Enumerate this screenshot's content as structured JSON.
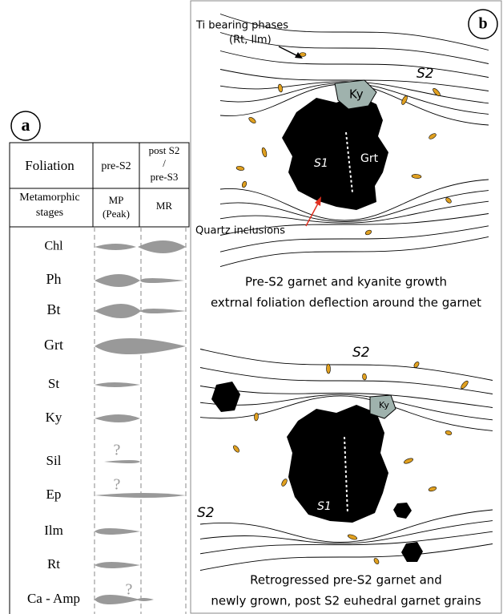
{
  "panel_a": {
    "label": "a",
    "header": {
      "foliation": "Foliation",
      "pre": "pre-S2",
      "post": [
        "post S2",
        "/",
        "pre-S3"
      ],
      "stages": [
        "Metamorphic",
        "stages"
      ],
      "mp": [
        "MP",
        "(Peak)"
      ],
      "mr": "MR"
    },
    "minerals": [
      {
        "name": "Chl"
      },
      {
        "name": "Ph"
      },
      {
        "name": "Bt"
      },
      {
        "name": "Grt"
      },
      {
        "name": "St"
      },
      {
        "name": "Ky"
      },
      {
        "name": "Sil",
        "mark": "?"
      },
      {
        "name": "Ep",
        "mark": "?"
      },
      {
        "name": "Ilm"
      },
      {
        "name": "Rt"
      },
      {
        "name": "Ca - Amp",
        "mark": "?"
      }
    ]
  },
  "panel_b": {
    "label": "b",
    "top": {
      "ti_phases": [
        "Ti bearing phases",
        "(Rt, Ilm)"
      ],
      "s2": "S2",
      "ky": "Ky",
      "s1": "S1",
      "grt": "Grt",
      "quartz": "Quartz inclusions",
      "caption": [
        "Pre-S2 garnet and kyanite growth",
        "extrnal foliation deflection around the garnet"
      ]
    },
    "bottom": {
      "s2_top": "S2",
      "ky": "Ky",
      "s1": "S1",
      "s2_left": "S2",
      "caption": [
        "Retrogressed pre-S2 garnet and",
        "newly grown, post S2 euhedral garnet grains"
      ]
    }
  }
}
